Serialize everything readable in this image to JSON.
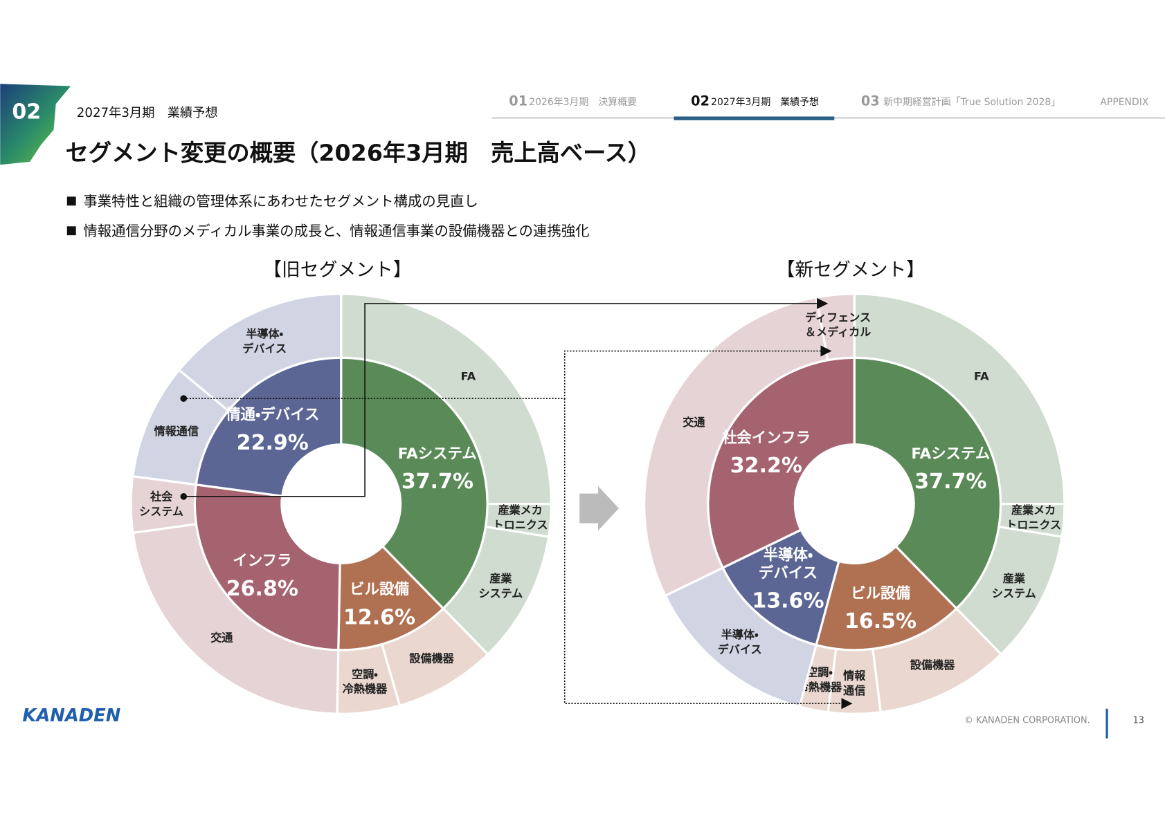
{
  "header": {
    "section_number": "02",
    "section_title": "2027年3月期　業績予想",
    "title": "セグメント変更の概要（2026年3月期　売上高ベース）"
  },
  "nav": [
    {
      "number": "01",
      "label": "2026年3月期　決算概要"
    },
    {
      "number": "02",
      "label": "2027年3月期　業績予想"
    },
    {
      "number": "03",
      "label": "新中期経営計画「True Solution 2028」"
    },
    {
      "label": "APPENDIX"
    }
  ],
  "bullets": [
    "事業特性と組織の管理体系にあわせたセグメント構成の見直し",
    "情報通信分野のメディカル事業の成長と、情報通信事業の設備機器との連携強化"
  ],
  "chart_data": [
    {
      "type": "donut",
      "title": "【旧セグメント】",
      "segments": [
        {
          "name": "FAシステム",
          "value": 37.7,
          "value_label": "37.7%",
          "color": "#5a8a58",
          "outer_color": "#cfdccf",
          "children": [
            {
              "name": "FA",
              "value": 25.0
            },
            {
              "name": "産業メカ\nトロニクス",
              "value": 2.5
            },
            {
              "name": "産業\nシステム",
              "value": 10.2
            }
          ]
        },
        {
          "name": "ビル設備",
          "value": 12.6,
          "value_label": "12.6%",
          "color": "#b07052",
          "outer_color": "#ead8d0",
          "children": [
            {
              "name": "設備機器",
              "value": 7.8
            },
            {
              "name": "空調・\n冷熱機器",
              "value": 4.8
            }
          ]
        },
        {
          "name": "インフラ",
          "value": 26.8,
          "value_label": "26.8%",
          "color": "#a56370",
          "outer_color": "#e6d3d6",
          "children": [
            {
              "name": "交通",
              "value": 22.5
            },
            {
              "name": "社会\nシステム",
              "value": 4.3
            }
          ]
        },
        {
          "name": "情通・デバイス",
          "value": 22.9,
          "value_label": "22.9%",
          "color": "#5c6695",
          "outer_color": "#d1d4e3",
          "children": [
            {
              "name": "情報通信",
              "value": 8.9
            },
            {
              "name": "半導体・\nデバイス",
              "value": 14.0
            }
          ]
        }
      ]
    },
    {
      "type": "donut",
      "title": "【新セグメント】",
      "segments": [
        {
          "name": "FAシステム",
          "value": 37.7,
          "value_label": "37.7%",
          "color": "#5a8a58",
          "outer_color": "#cfdccf",
          "children": [
            {
              "name": "FA",
              "value": 25.0
            },
            {
              "name": "産業メカ\nトロニクス",
              "value": 2.5
            },
            {
              "name": "産業\nシステム",
              "value": 10.2
            }
          ]
        },
        {
          "name": "ビル設備",
          "value": 16.5,
          "value_label": "16.5%",
          "color": "#b07052",
          "outer_color": "#ead8d0",
          "children": [
            {
              "name": "設備機器",
              "value": 10.3
            },
            {
              "name": "情報\n通信",
              "value": 4.0
            },
            {
              "name": "空調・\n冷熱機器",
              "value": 2.2
            }
          ]
        },
        {
          "name": "半導体・\nデバイス",
          "value": 13.6,
          "value_label": "13.6%",
          "color": "#5c6695",
          "outer_color": "#d1d4e3",
          "children": [
            {
              "name": "半導体・\nデバイス",
              "value": 13.6
            }
          ]
        },
        {
          "name": "社会インフラ",
          "value": 32.2,
          "value_label": "32.2%",
          "color": "#a56370",
          "outer_color": "#e6d3d6",
          "children": [
            {
              "name": "交通",
              "value": 29.3
            },
            {
              "name": "ディフェンス\n＆メディカル",
              "value": 2.9
            }
          ]
        }
      ]
    }
  ],
  "footer": {
    "logo": "KANADEN",
    "copyright": "© KANADEN CORPORATION.",
    "page": "13"
  }
}
